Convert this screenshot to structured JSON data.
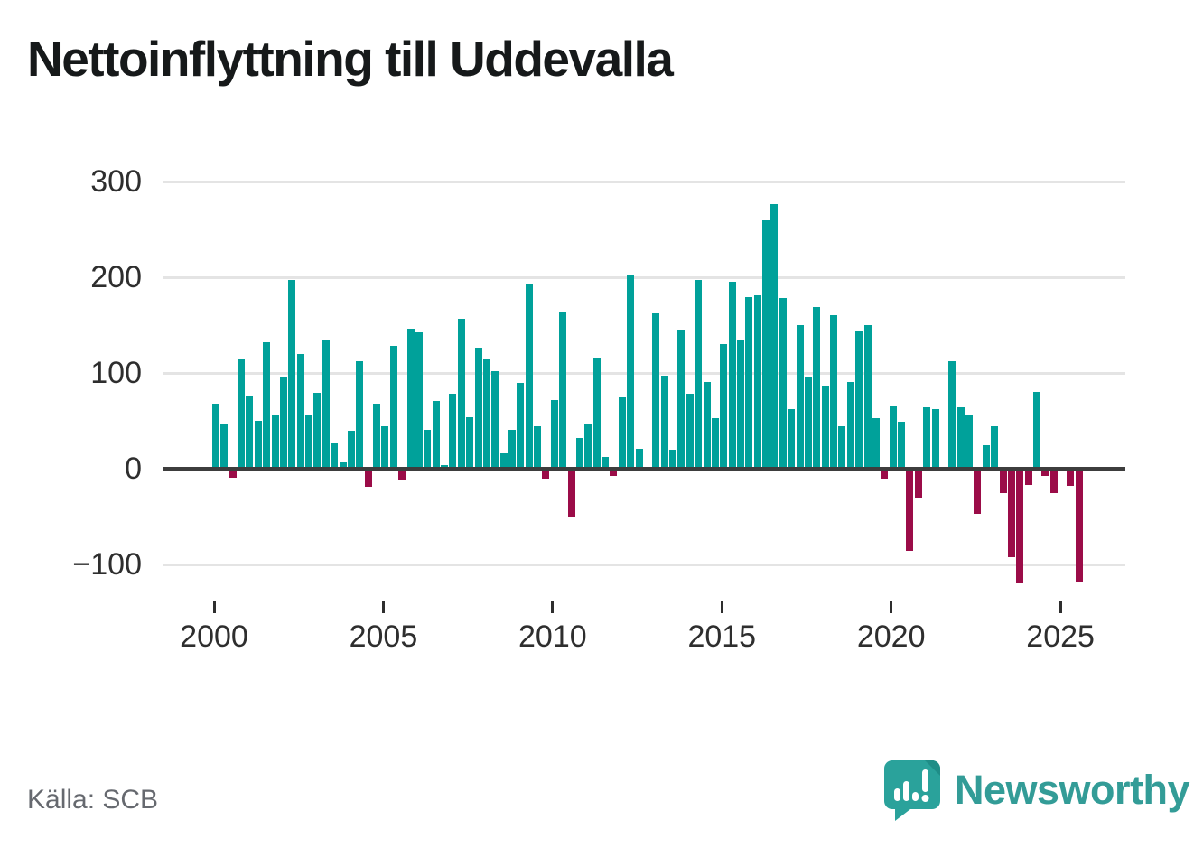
{
  "title": "Nettoinflyttning till Uddevalla",
  "source": "Källa: SCB",
  "logo": {
    "text": "Newsworthy"
  },
  "colors": {
    "positive": "#00a19a",
    "negative": "#9b0c48",
    "axis": "#3d3d3d",
    "grid": "#e4e4e4",
    "tick_text": "#2e2e2e",
    "source_text": "#66696f",
    "logo_teal": "#2aa29b",
    "logo_text_teal": "#339c97",
    "title_color": "#16191a"
  },
  "chart_data": {
    "type": "bar",
    "title": "Nettoinflyttning till Uddevalla",
    "period": "quarterly",
    "start_period": "2000-Q1",
    "end_period": "2025-Q3",
    "values": [
      68,
      47,
      -9,
      114,
      76,
      50,
      132,
      57,
      95,
      197,
      120,
      56,
      79,
      134,
      26,
      7,
      40,
      112,
      -19,
      68,
      44,
      128,
      -12,
      146,
      142,
      41,
      71,
      4,
      78,
      157,
      54,
      126,
      115,
      102,
      16,
      41,
      90,
      193,
      44,
      -10,
      72,
      163,
      -50,
      32,
      47,
      116,
      12,
      -8,
      75,
      202,
      21,
      0,
      162,
      97,
      20,
      145,
      78,
      197,
      91,
      53,
      130,
      195,
      134,
      179,
      181,
      259,
      276,
      178,
      62,
      150,
      95,
      169,
      87,
      160,
      44,
      91,
      144,
      150,
      53,
      -10,
      65,
      49,
      -86,
      -30,
      64,
      62,
      -3,
      112,
      64,
      57,
      -47,
      25,
      44,
      -25,
      -92,
      -120,
      -17,
      80,
      -8,
      -25,
      0,
      -18,
      -119
    ],
    "x_ticks": [
      {
        "year": 2000,
        "label": "2000"
      },
      {
        "year": 2005,
        "label": "2005"
      },
      {
        "year": 2010,
        "label": "2010"
      },
      {
        "year": 2015,
        "label": "2015"
      },
      {
        "year": 2020,
        "label": "2020"
      },
      {
        "year": 2025,
        "label": "2025"
      }
    ],
    "y_ticks": [
      {
        "value": 300,
        "label": "300"
      },
      {
        "value": 200,
        "label": "200"
      },
      {
        "value": 100,
        "label": "100"
      },
      {
        "value": 0,
        "label": "0"
      },
      {
        "value": -100,
        "label": "−100"
      }
    ],
    "ylim": [
      -140,
      310
    ],
    "grid": true,
    "legend": "none",
    "positive_color": "#00a19a",
    "negative_color": "#9b0c48"
  }
}
